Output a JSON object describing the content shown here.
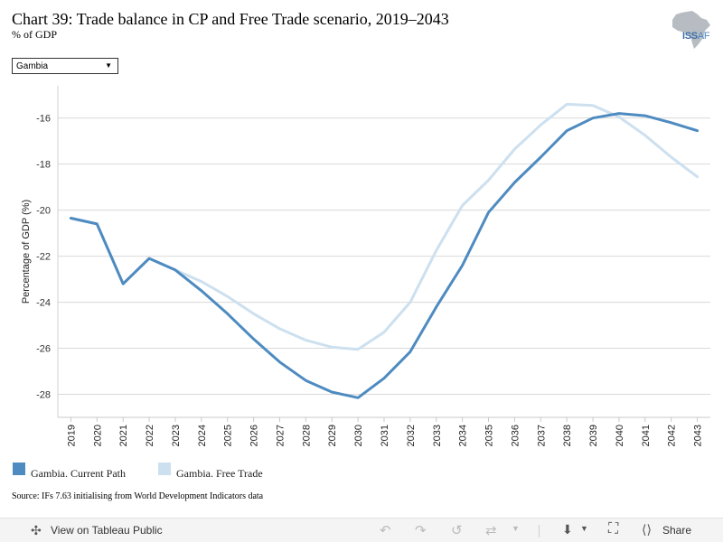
{
  "title": "Chart 39: Trade balance in CP and Free Trade scenario, 2019–2043",
  "subtitle": "% of GDP",
  "logo": {
    "text_bold": "ISS",
    "text_light": "AF"
  },
  "selector": {
    "value": "Gambia"
  },
  "source": "Source: IFs 7.63 initialising from World Development Indicators data",
  "toolbar": {
    "view_label": "View on Tableau Public",
    "share_label": "Share"
  },
  "colors": {
    "current_path": "#4e8bc0",
    "free_trade": "#cde0ef",
    "grid": "#d9d9d9"
  },
  "chart_data": {
    "type": "line",
    "title": "Chart 39: Trade balance in CP and Free Trade scenario, 2019–2043",
    "subtitle": "% of GDP",
    "xlabel": "",
    "ylabel": "Percentage of GDP (%)",
    "x": [
      "2019",
      "2020",
      "2021",
      "2022",
      "2023",
      "2024",
      "2025",
      "2026",
      "2027",
      "2028",
      "2029",
      "2030",
      "2031",
      "2032",
      "2033",
      "2034",
      "2035",
      "2036",
      "2037",
      "2038",
      "2039",
      "2040",
      "2041",
      "2042",
      "2043"
    ],
    "ylim": [
      -29,
      -14.6
    ],
    "yticks": [
      -16,
      -18,
      -20,
      -22,
      -24,
      -26,
      -28
    ],
    "ytick_labels": [
      "-16",
      "-18",
      "-20",
      "-22",
      "-24",
      "-26",
      "-28"
    ],
    "grid": true,
    "legend_position": "bottom-left",
    "series": [
      {
        "name": "Gambia. Current Path",
        "color": "#4e8bc0",
        "values": [
          -20.35,
          -20.6,
          -23.2,
          -22.1,
          -22.6,
          -23.5,
          -24.5,
          -25.6,
          -26.6,
          -27.4,
          -27.9,
          -28.15,
          -27.3,
          -26.15,
          -24.2,
          -22.4,
          -20.1,
          -18.8,
          -17.7,
          -16.55,
          -16.0,
          -15.8,
          -15.9,
          -16.2,
          -16.55
        ]
      },
      {
        "name": "Gambia. Free Trade",
        "color": "#cde0ef",
        "values": [
          -20.35,
          -20.6,
          -23.2,
          -22.1,
          -22.6,
          -23.1,
          -23.75,
          -24.5,
          -25.15,
          -25.65,
          -25.95,
          -26.05,
          -25.3,
          -24.0,
          -21.75,
          -19.8,
          -18.7,
          -17.35,
          -16.3,
          -15.4,
          -15.45,
          -15.95,
          -16.75,
          -17.7,
          -18.55
        ]
      }
    ]
  }
}
